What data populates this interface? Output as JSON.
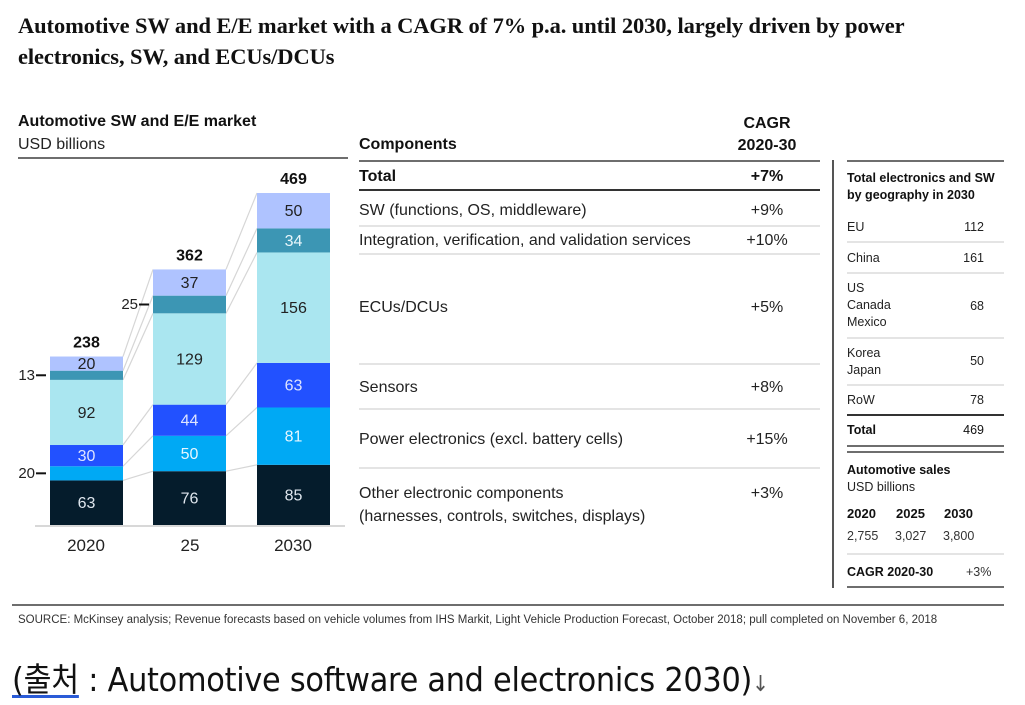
{
  "title": "Automotive SW and E/E market with a CAGR of 7% p.a. until 2030, largely driven by power electronics, SW, and ECUs/DCUs",
  "chart_data": {
    "type": "bar",
    "stacked": true,
    "title": "Automotive SW and E/E market",
    "ylabel": "USD billions",
    "xlabel": "",
    "categories": [
      "2020",
      "25",
      "2030"
    ],
    "totals": [
      238,
      362,
      469
    ],
    "series": [
      {
        "name": "Other electronic components (harnesses, controls, switches, displays)",
        "color": "#051c2c",
        "label_color": "#dfe6ee",
        "values": [
          63,
          76,
          85
        ]
      },
      {
        "name": "Power electronics (excl. battery cells)",
        "color": "#00a9f4",
        "label_color": "#e6f6ff",
        "values": [
          20,
          50,
          81
        ]
      },
      {
        "name": "Sensors",
        "color": "#2251ff",
        "label_color": "#dfe4ff",
        "values": [
          30,
          44,
          63
        ]
      },
      {
        "name": "ECUs/DCUs",
        "color": "#aae6f0",
        "label_color": "#222222",
        "values": [
          92,
          129,
          156
        ]
      },
      {
        "name": "Integration, verification, and validation services",
        "color": "#3c96b4",
        "label_color": "#e8f6fb",
        "values": [
          13,
          25,
          34
        ]
      },
      {
        "name": "SW (functions, OS, middleware)",
        "color": "#afc3ff",
        "label_color": "#222222",
        "values": [
          20,
          37,
          50
        ]
      }
    ],
    "outside_labels": [
      {
        "category": "2020",
        "series": "Power electronics (excl. battery cells)",
        "text": "20"
      },
      {
        "category": "2020",
        "series": "Integration, verification, and validation services",
        "text": "13"
      },
      {
        "category": "25",
        "series": "Integration, verification, and validation services",
        "text": "25"
      }
    ],
    "ylim": [
      0,
      469
    ],
    "grid": false,
    "legend": "right (components table)"
  },
  "components_table": {
    "header_components": "Components",
    "header_cagr_line1": "CAGR",
    "header_cagr_line2": "2020-30",
    "rows": [
      {
        "name": "Total",
        "cagr": "+7%"
      },
      {
        "name": "SW (functions, OS, middleware)",
        "cagr": "+9%"
      },
      {
        "name": "Integration, verification, and validation services",
        "cagr": "+10%"
      },
      {
        "name": "ECUs/DCUs",
        "cagr": "+5%"
      },
      {
        "name": "Sensors",
        "cagr": "+8%"
      },
      {
        "name": "Power electronics (excl. battery cells)",
        "cagr": "+15%"
      },
      {
        "name": "Other electronic components",
        "name_line2": "(harnesses, controls, switches, displays)",
        "cagr": "+3%"
      }
    ]
  },
  "geography": {
    "title_line1": "Total electronics and SW",
    "title_line2": "by geography in 2030",
    "rows": [
      {
        "lines": [
          "EU"
        ],
        "value": "112"
      },
      {
        "lines": [
          "China"
        ],
        "value": "161"
      },
      {
        "lines": [
          "US",
          "Canada",
          "Mexico"
        ],
        "value": "68"
      },
      {
        "lines": [
          "Korea",
          "Japan"
        ],
        "value": "50"
      },
      {
        "lines": [
          "RoW"
        ],
        "value": "78"
      }
    ],
    "total_label": "Total",
    "total_value": "469"
  },
  "automotive_sales": {
    "title": "Automotive sales",
    "unit": "USD billions",
    "years": [
      "2020",
      "2025",
      "2030"
    ],
    "values": [
      "2,755",
      "3,027",
      "3,800"
    ],
    "cagr_label": "CAGR 2020-30",
    "cagr_value": "+3%"
  },
  "source": "SOURCE: McKinsey analysis; Revenue forecasts based on vehicle volumes from IHS Markit, Light Vehicle Production Forecast, October 2018; pull completed on November 6, 2018",
  "caption": {
    "prefix": "(출처",
    "colon": " : ",
    "text": "Automotive software and electronics 2030)",
    "arrow": "↓"
  }
}
